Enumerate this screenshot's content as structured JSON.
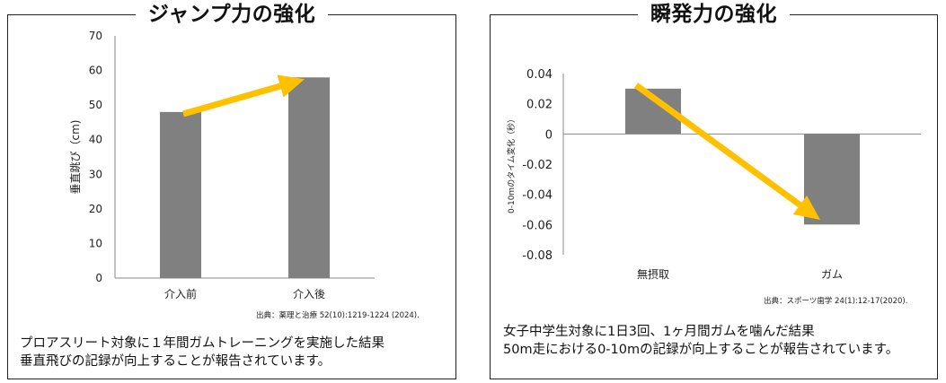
{
  "panels": [
    {
      "title": "ジャンプ力の強化",
      "source": "出典：薬理と治療 52(10):1219-1224 (2024).",
      "caption_lines": [
        "プロアスリート対象に１年間ガムトレーニングを実施した結果",
        "垂直飛びの記録が向上することが報告されています。"
      ]
    },
    {
      "title": "瞬発力の強化",
      "source": "出典：スポーツ歯学 24(1):12-17(2020).",
      "caption_lines": [
        "女子中学生対象に1日3回、1ヶ月間ガムを噛んだ結果",
        "50m走における0-10mの記録が向上することが報告されています。"
      ]
    }
  ],
  "chart_data": [
    {
      "type": "bar",
      "categories": [
        "介入前",
        "介入後"
      ],
      "values": [
        48,
        58
      ],
      "ylabel": "垂直跳び（cm)",
      "ylim": [
        0,
        70
      ],
      "yticks": [
        "0",
        "10",
        "20",
        "30",
        "40",
        "50",
        "60",
        "70"
      ],
      "bar_color": "#808080",
      "arrow_color": "#FFC000",
      "grid": false
    },
    {
      "type": "bar",
      "categories": [
        "無摂取",
        "ガム"
      ],
      "values": [
        0.03,
        -0.06
      ],
      "ylabel": "0-10mのタイム変化（秒）",
      "ylim": [
        -0.08,
        0.04
      ],
      "yticks": [
        "0.04",
        "0.02",
        "0",
        "-0.02",
        "-0.04",
        "-0.06",
        "-0.08"
      ],
      "bar_color": "#808080",
      "arrow_color": "#FFC000",
      "grid": false
    }
  ]
}
